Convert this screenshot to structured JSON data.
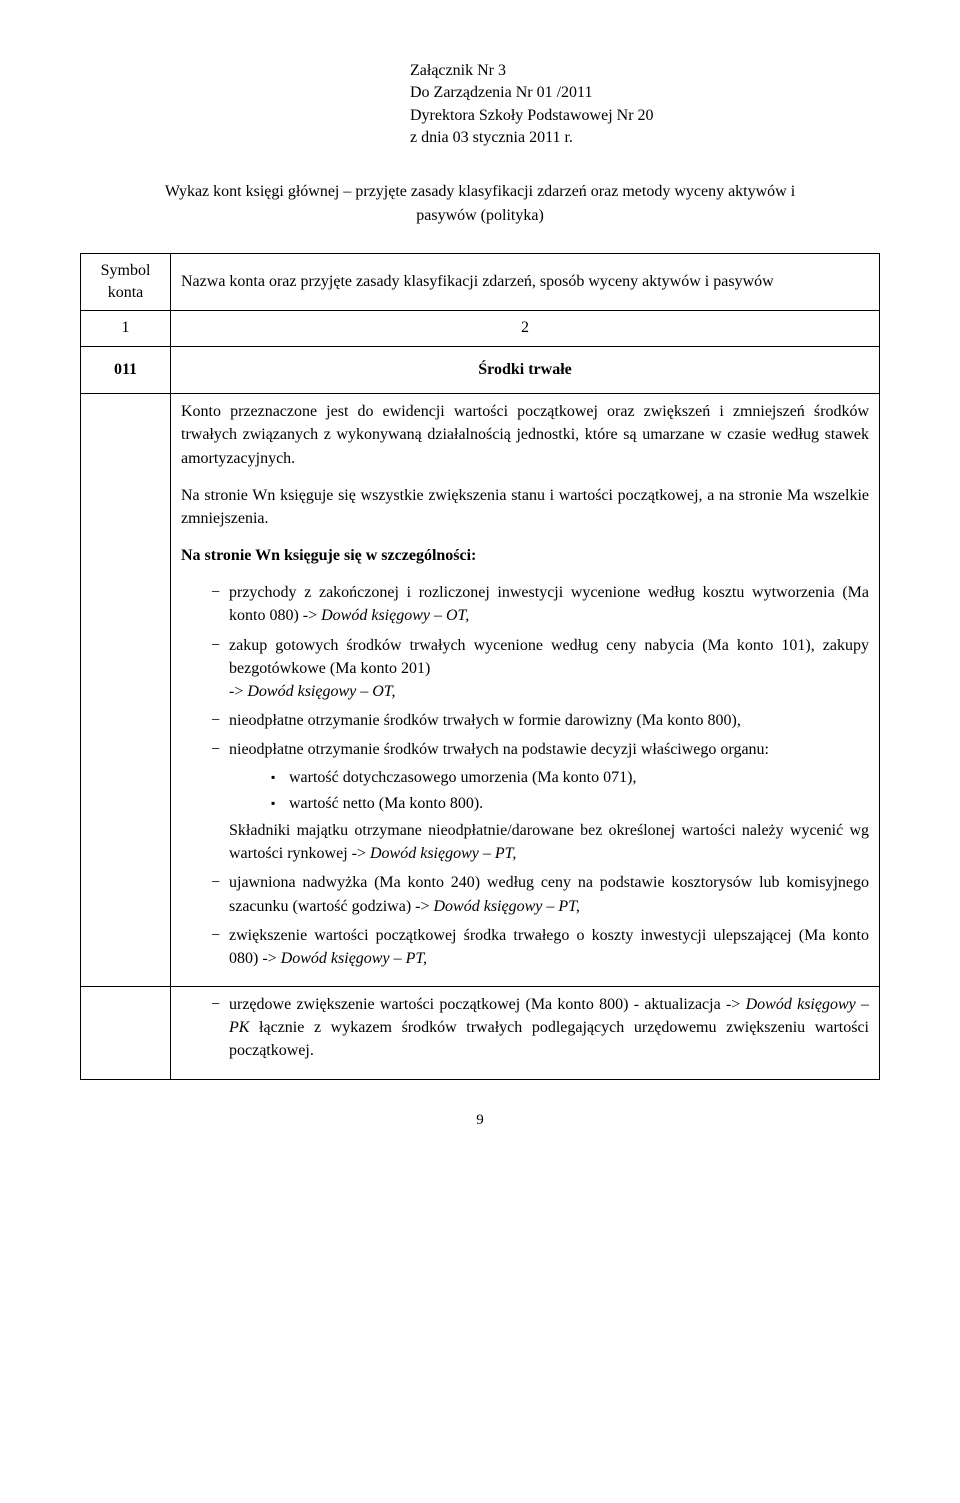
{
  "header": {
    "line1": "Załącznik Nr 3",
    "line2": "Do Zarządzenia Nr 01 /2011",
    "line3": "Dyrektora Szkoły Podstawowej Nr 20",
    "line4": "z dnia 03 stycznia 2011 r."
  },
  "title": "Wykaz kont księgi głównej – przyjęte zasady klasyfikacji zdarzeń oraz  metody wyceny aktywów i pasywów (polityka)",
  "table": {
    "head": {
      "col1_l1": "Symbol",
      "col1_l2": "konta",
      "col2": "Nazwa konta oraz przyjęte zasady klasyfikacji zdarzeń, sposób wyceny aktywów i pasywów"
    },
    "numrow": {
      "c1": "1",
      "c2": "2"
    },
    "row011": {
      "sym": "011",
      "title": "Środki trwałe"
    },
    "body": {
      "p1": "Konto przeznaczone jest do ewidencji wartości początkowej oraz zwiększeń i zmniejszeń środków trwałych związanych z wykonywaną działalnością jednostki, które są umarzane w czasie według stawek amortyzacyjnych.",
      "p2": "Na stronie Wn księguje się wszystkie zwiększenia stanu i wartości początkowej, a na stronie Ma wszelkie zmniejszenia.",
      "p3_label": "Na stronie Wn księguje się w szczególności:",
      "li1a": "przychody z zakończonej i rozliczonej inwestycji wycenione według kosztu wytworzenia (Ma konto 080) -> ",
      "li1b": "Dowód księgowy – OT,",
      "li2a": "zakup gotowych środków trwałych wycenione według ceny nabycia (Ma konto 101), zakupy bezgotówkowe (Ma konto 201)",
      "li2b_pre": "-> ",
      "li2b": "Dowód księgowy – OT,",
      "li3": "nieodpłatne otrzymanie środków trwałych w formie darowizny (Ma konto 800),",
      "li4": "nieodpłatne otrzymanie środków trwałych na podstawie decyzji właściwego organu:",
      "li4_s1": "wartość dotychczasowego umorzenia (Ma konto 071),",
      "li4_s2": "wartość netto (Ma konto 800).",
      "li4_post_a": "Składniki majątku otrzymane nieodpłatnie/darowane bez określonej wartości należy wycenić wg wartości rynkowej -> ",
      "li4_post_b": "Dowód  księgowy – PT,",
      "li5a": "ujawniona nadwyżka (Ma konto 240) według ceny na podstawie kosztorysów lub komisyjnego szacunku (wartość godziwa) -> ",
      "li5b": "Dowód księgowy – PT,",
      "li6a": "zwiększenie wartości początkowej środka trwałego o koszty inwestycji ulepszającej (Ma konto 080) -> ",
      "li6b": "Dowód księgowy – PT,",
      "li7a": "urzędowe zwiększenie wartości początkowej (Ma konto 800) - aktualizacja -> ",
      "li7b": "Dowód księgowy – PK",
      "li7c": " łącznie z wykazem środków trwałych podlegających urzędowemu zwiększeniu wartości początkowej."
    }
  },
  "pagenum": "9"
}
